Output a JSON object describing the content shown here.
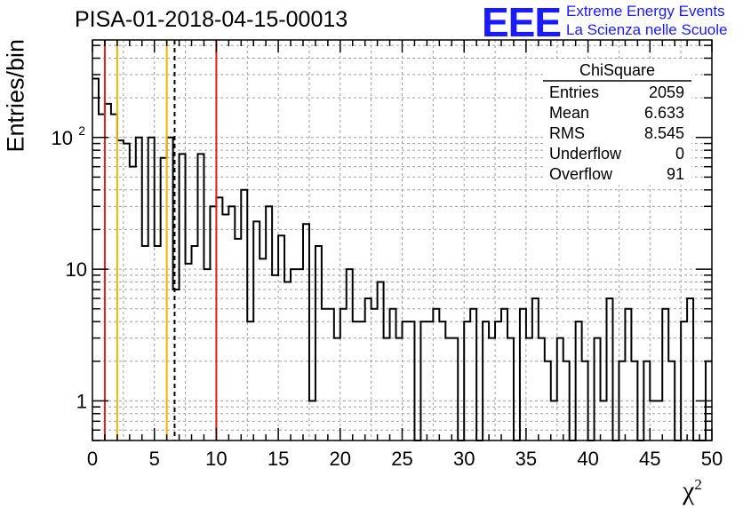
{
  "header": {
    "run_title": "PISA-01-2018-04-15-00013",
    "logo_text": "EEE",
    "logo_line1": "Extreme Energy Events",
    "logo_line2": "La Scienza nelle Scuole"
  },
  "colors": {
    "logo": "#1a1aff",
    "red_line": "#e0201b",
    "orange_line": "#f0b400",
    "histogram": "#000000",
    "grid": "#a0a0a0"
  },
  "chart_data": {
    "type": "histogram",
    "title": "",
    "xlabel": "χ",
    "xlabel_sup": "2",
    "ylabel": "Entries/bin",
    "x_scale": "linear",
    "y_scale": "log",
    "xlim": [
      0,
      50
    ],
    "ylim": [
      0.5,
      550
    ],
    "grid": true,
    "x_ticks": [
      0,
      5,
      10,
      15,
      20,
      25,
      30,
      35,
      40,
      45,
      50
    ],
    "x_tick_labels": [
      "0",
      "5",
      "10",
      "15",
      "20",
      "25",
      "30",
      "35",
      "40",
      "45",
      "50"
    ],
    "y_ticks": [
      1,
      10,
      100
    ],
    "y_tick_labels": [
      "1",
      "10",
      "10^2"
    ],
    "bin_width": 0.5,
    "bin_edges_start": 0,
    "bin_counts": [
      280,
      150,
      180,
      150,
      95,
      90,
      60,
      100,
      15,
      100,
      15,
      70,
      100,
      7,
      75,
      11,
      15,
      75,
      10,
      30,
      35,
      26,
      30,
      17,
      40,
      4,
      23,
      12,
      30,
      9,
      18,
      8,
      10,
      10,
      22,
      1,
      15,
      5,
      5,
      3,
      5,
      10,
      4,
      4,
      6,
      5,
      8,
      3,
      5,
      3,
      4,
      4,
      0.2,
      4,
      4,
      5,
      4,
      3,
      3,
      0.2,
      4,
      5,
      0.2,
      4,
      3,
      4,
      5,
      3,
      0.2,
      5,
      3,
      6,
      3,
      2,
      1,
      3,
      2,
      0.2,
      4,
      2,
      0.2,
      3,
      1,
      6,
      0.2,
      2,
      5,
      2,
      0.2,
      2,
      1,
      1,
      5,
      2,
      0.2,
      4,
      6,
      0.2,
      0.2,
      2
    ],
    "vertical_lines": [
      {
        "x": 1,
        "color": "red",
        "style": "solid"
      },
      {
        "x": 2,
        "color": "orange",
        "style": "solid"
      },
      {
        "x": 6,
        "color": "orange",
        "style": "solid"
      },
      {
        "x": 6.633,
        "color": "black",
        "style": "dashed"
      },
      {
        "x": 10,
        "color": "red",
        "style": "solid"
      }
    ],
    "stats_box": {
      "title": "ChiSquare",
      "rows": [
        {
          "label": "Entries",
          "value": "2059"
        },
        {
          "label": "Mean",
          "value": "6.633"
        },
        {
          "label": "RMS",
          "value": "8.545"
        },
        {
          "label": "Underflow",
          "value": "0"
        },
        {
          "label": "Overflow",
          "value": "91"
        }
      ]
    }
  }
}
